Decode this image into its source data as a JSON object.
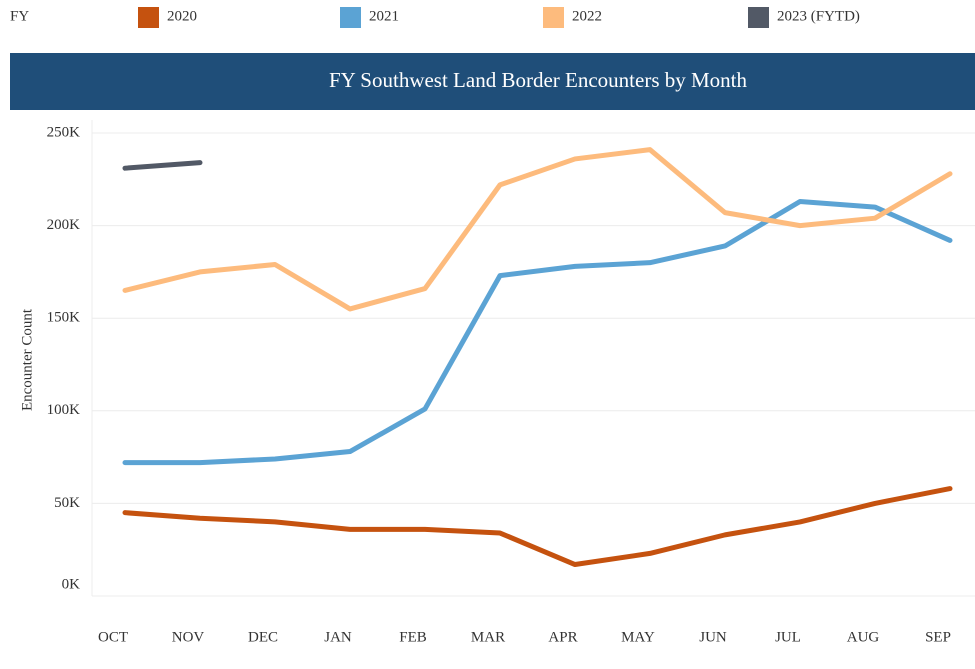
{
  "chart_data": {
    "type": "line",
    "title": "FY Southwest Land Border Encounters by Month",
    "legend_title": "FY",
    "y_label": "Encounter Count",
    "categories": [
      "OCT",
      "NOV",
      "DEC",
      "JAN",
      "FEB",
      "MAR",
      "APR",
      "MAY",
      "JUN",
      "JUL",
      "AUG",
      "SEP"
    ],
    "series": [
      {
        "name": "2020",
        "color": "#c5520f",
        "values": [
          45,
          42,
          40,
          36,
          36,
          34,
          17,
          23,
          33,
          40,
          50,
          58
        ]
      },
      {
        "name": "2021",
        "color": "#5ba3d4",
        "values": [
          72,
          72,
          74,
          78,
          101,
          173,
          178,
          180,
          189,
          213,
          210,
          192
        ]
      },
      {
        "name": "2022",
        "color": "#fdbb7d",
        "values": [
          165,
          175,
          179,
          155,
          166,
          222,
          236,
          241,
          207,
          200,
          204,
          228
        ]
      },
      {
        "name": "2023 (FYTD)",
        "color": "#525966",
        "values": [
          231,
          234,
          null,
          null,
          null,
          null,
          null,
          null,
          null,
          null,
          null,
          null
        ]
      }
    ],
    "ylim": [
      0,
      250
    ],
    "yticks": [
      {
        "value": 0,
        "label": "0K"
      },
      {
        "value": 50,
        "label": "50K"
      },
      {
        "value": 100,
        "label": "100K"
      },
      {
        "value": 150,
        "label": "150K"
      },
      {
        "value": 200,
        "label": "200K"
      },
      {
        "value": 250,
        "label": "250K"
      }
    ],
    "grid": true
  }
}
